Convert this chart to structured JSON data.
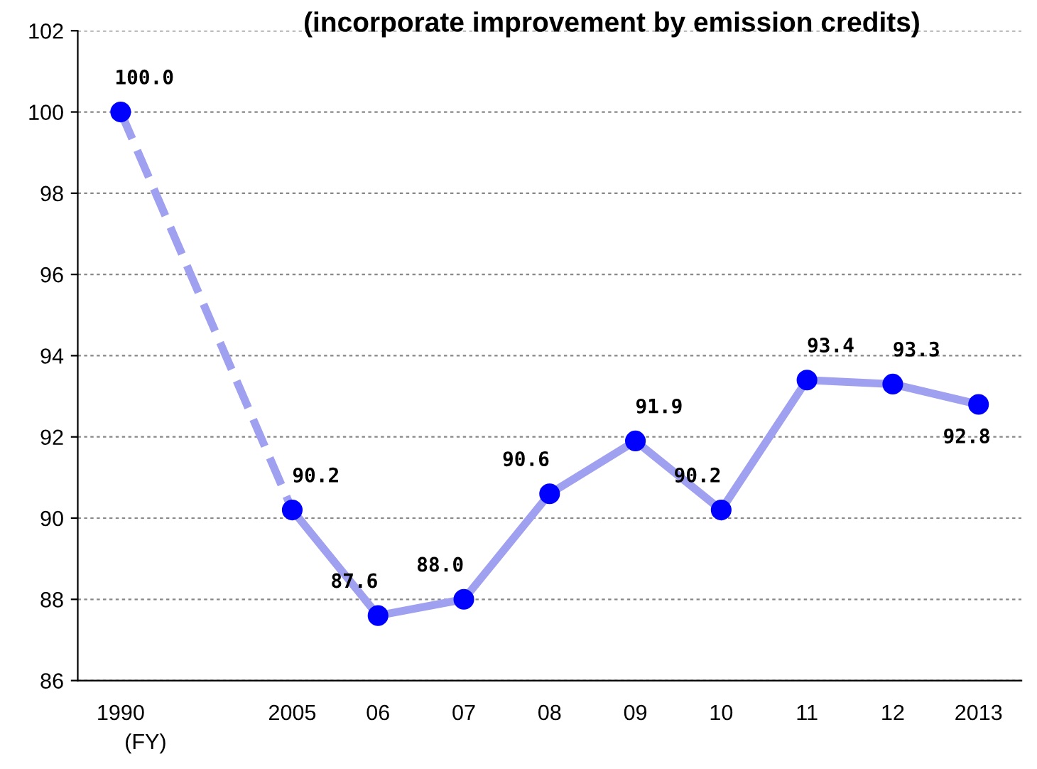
{
  "chart_data": {
    "type": "line",
    "title": "(incorporate improvement by emission credits)",
    "xlabel": "(FY)",
    "categories": [
      "1990",
      null,
      "2005",
      "06",
      "07",
      "08",
      "09",
      "10",
      "11",
      "12",
      "2013"
    ],
    "series": [
      {
        "color": "#a0a0f0",
        "line_style": "dashed",
        "marker": "none",
        "values": [
          100.0,
          null,
          90.2,
          null,
          null,
          null,
          null,
          null,
          null,
          null,
          null
        ]
      },
      {
        "color": "#a0a0f0",
        "line_style": "solid",
        "marker": "none",
        "values": [
          null,
          null,
          90.2,
          87.6,
          88.0,
          90.6,
          91.9,
          90.2,
          93.4,
          93.3,
          92.8
        ]
      },
      {
        "type": "scatter",
        "color": "#0000ff",
        "marker": "circle",
        "values": [
          100.0,
          null,
          90.2,
          87.6,
          88.0,
          90.6,
          91.9,
          90.2,
          93.4,
          93.3,
          92.8
        ],
        "value_labels": [
          "100.0",
          null,
          "90.2",
          "87.6",
          "88.0",
          "90.6",
          "91.9",
          "90.2",
          "93.4",
          "93.3",
          "92.8"
        ]
      }
    ],
    "ylim": [
      86,
      102
    ],
    "yticks": [
      86,
      88,
      90,
      92,
      94,
      96,
      98,
      100,
      102
    ],
    "grid": "y",
    "legend": false
  }
}
